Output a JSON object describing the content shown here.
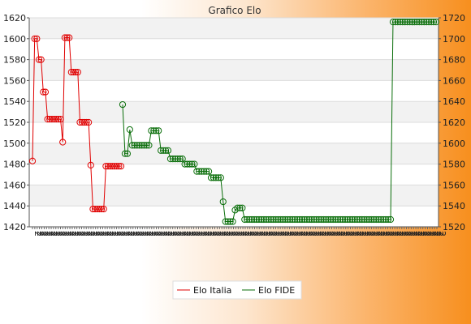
{
  "chart_data": {
    "type": "line",
    "title": "Grafico Elo",
    "xlabel": "",
    "ylabel_left": "",
    "ylabel_right": "",
    "x_tick_label_visible_prefix": "2",
    "left_axis": {
      "ylim": [
        1420,
        1620
      ],
      "ticks": [
        1420,
        1440,
        1460,
        1480,
        1500,
        1520,
        1540,
        1560,
        1580,
        1600,
        1620
      ]
    },
    "right_axis": {
      "ylim": [
        1520,
        1720
      ],
      "ticks": [
        1520,
        1540,
        1560,
        1580,
        1600,
        1620,
        1640,
        1660,
        1680,
        1700,
        1720
      ]
    },
    "grid": true,
    "legend_position": "bottom-center",
    "series": [
      {
        "name": "Elo Italia",
        "axis": "left",
        "color": "#e00000",
        "marker": "circle",
        "values": [
          1483,
          1600,
          1600,
          1580,
          1580,
          1549,
          1549,
          1523,
          1523,
          1523,
          1523,
          1523,
          1523,
          1523,
          1501,
          1601,
          1601,
          1601,
          1568,
          1568,
          1568,
          1568,
          1520,
          1520,
          1520,
          1520,
          1520,
          1479,
          1437,
          1437,
          1437,
          1437,
          1437,
          1437,
          1478,
          1478,
          1478,
          1478,
          1478,
          1478,
          1478,
          1478
        ]
      },
      {
        "name": "Elo FIDE",
        "axis": "right",
        "color": "#0a6e0a",
        "marker": "circle",
        "values": [
          1637,
          1590,
          1590,
          1613,
          1598,
          1598,
          1598,
          1598,
          1598,
          1598,
          1598,
          1598,
          1612,
          1612,
          1612,
          1612,
          1593,
          1593,
          1593,
          1593,
          1585,
          1585,
          1585,
          1585,
          1585,
          1585,
          1580,
          1580,
          1580,
          1580,
          1580,
          1573,
          1573,
          1573,
          1573,
          1573,
          1573,
          1567,
          1567,
          1567,
          1567,
          1567,
          1544,
          1525,
          1525,
          1525,
          1525,
          1536,
          1538,
          1538,
          1538,
          1527,
          1527,
          1527,
          1527,
          1527,
          1527,
          1527,
          1527,
          1527,
          1527,
          1527,
          1527,
          1527,
          1527,
          1527,
          1527,
          1527,
          1527,
          1527,
          1527,
          1527,
          1527,
          1527,
          1527,
          1527,
          1527,
          1527,
          1527,
          1527,
          1527,
          1527,
          1527,
          1527,
          1527,
          1527,
          1527,
          1527,
          1527,
          1527,
          1527,
          1527,
          1527,
          1527,
          1527,
          1527,
          1527,
          1527,
          1527,
          1527,
          1527,
          1527,
          1527,
          1527,
          1527,
          1527,
          1527,
          1527,
          1527,
          1527,
          1527,
          1527,
          1527,
          1716,
          1716,
          1716,
          1716,
          1716,
          1716,
          1716,
          1716,
          1716,
          1716,
          1716,
          1716,
          1716,
          1716,
          1716,
          1716,
          1716,
          1716,
          1716
        ]
      }
    ]
  }
}
